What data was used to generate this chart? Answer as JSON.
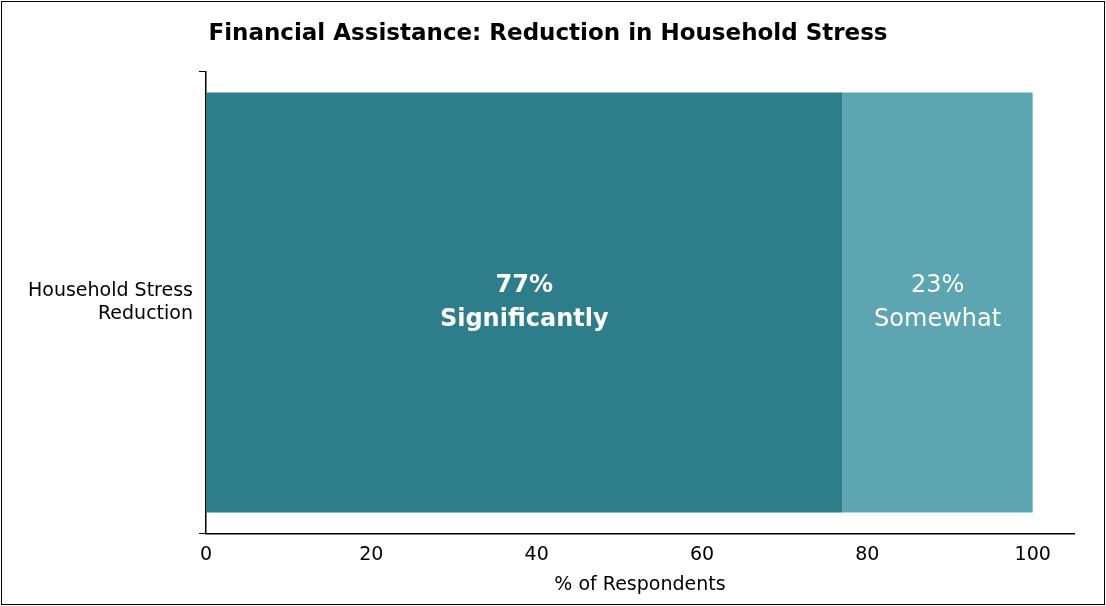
{
  "chart_data": {
    "type": "bar",
    "orientation": "horizontal",
    "stacked": true,
    "title": "Financial Assistance: Reduction in Household Stress",
    "xlabel": "% of Respondents",
    "categories": [
      "Household Stress Reduction"
    ],
    "series": [
      {
        "name": "Significantly",
        "color": "#2e7d8a",
        "values": [
          77
        ],
        "value_labels": [
          "77%"
        ]
      },
      {
        "name": "Somewhat",
        "color": "#5ca5b1",
        "values": [
          23
        ],
        "value_labels": [
          "23%"
        ]
      }
    ],
    "xlim": [
      0,
      105
    ],
    "xticks": [
      0,
      20,
      40,
      60,
      80,
      100
    ],
    "grid": false,
    "legend": false
  }
}
